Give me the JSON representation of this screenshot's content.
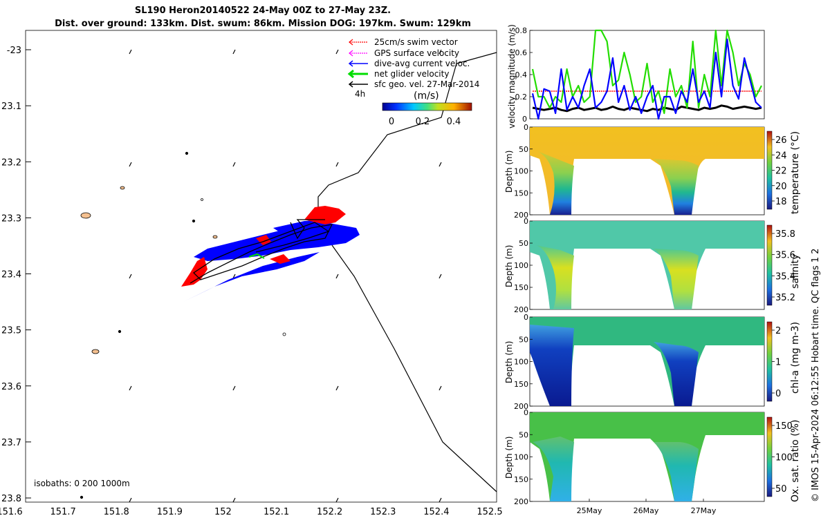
{
  "header": {
    "title_line1": "SL190 Heron20140522 24-May 00Z to 27-May 23Z.",
    "title_line2": "Dist. over ground: 133km. Dist. swum: 86km. Mission DOG: 197km. Swum: 129km"
  },
  "map": {
    "x_ticks": [
      "151.6",
      "151.7",
      "151.8",
      "151.9",
      "152",
      "152.1",
      "152.2",
      "152.3",
      "152.4",
      "152.5"
    ],
    "y_ticks": [
      "-23",
      "23.1",
      "23.2",
      "23.3",
      "23.4",
      "23.5",
      "23.6",
      "23.7",
      "23.8"
    ],
    "legend": [
      {
        "label": "25cm/s swim vector",
        "color": "#ff0000"
      },
      {
        "label": "GPS surface velocity",
        "color": "#ff00ff"
      },
      {
        "label": "dive-avg current veloc.",
        "color": "#0000ff"
      },
      {
        "label": "net glider velocity",
        "color": "#00dd00"
      },
      {
        "label": "sfc geo. vel. 27-Mar-2014",
        "color": "#000000"
      }
    ],
    "legend_4h": "4h",
    "colorbar_unit": "(m/s)",
    "colorbar_ticks": [
      "0",
      "0.2",
      "0.4"
    ],
    "isobaths": "isobaths: 0   200  1000m"
  },
  "chart_data": [
    {
      "type": "line",
      "title": "",
      "ylabel": "velocity magnitude (m/s)",
      "ylim": [
        0,
        0.8
      ],
      "y_ticks": [
        "0",
        "0.2",
        "0.4",
        "0.6",
        "0.8"
      ],
      "series": [
        {
          "name": "dive-avg current",
          "color": "#0000ff",
          "values": [
            0.23,
            0.0,
            0.27,
            0.25,
            0.05,
            0.45,
            0.08,
            0.2,
            0.1,
            0.3,
            0.45,
            0.1,
            0.15,
            0.25,
            0.55,
            0.15,
            0.3,
            0.08,
            0.2,
            0.05,
            0.2,
            0.3,
            0.0,
            0.2,
            0.2,
            0.05,
            0.25,
            0.15,
            0.45,
            0.15,
            0.25,
            0.1,
            0.6,
            0.2,
            0.72,
            0.3,
            0.18,
            0.55,
            0.35,
            0.15,
            0.1
          ]
        },
        {
          "name": "net glider",
          "color": "#22dd00",
          "values": [
            0.45,
            0.2,
            0.2,
            0.1,
            0.2,
            0.15,
            0.45,
            0.2,
            0.3,
            0.15,
            0.2,
            0.8,
            0.8,
            0.7,
            0.3,
            0.35,
            0.6,
            0.4,
            0.15,
            0.2,
            0.5,
            0.15,
            0.25,
            0.05,
            0.45,
            0.2,
            0.3,
            0.1,
            0.7,
            0.1,
            0.4,
            0.2,
            0.8,
            0.3,
            0.8,
            0.6,
            0.3,
            0.5,
            0.4,
            0.2,
            0.3
          ]
        },
        {
          "name": "swim 25cm/s",
          "color": "#ff0000",
          "values": [
            0.25,
            0.25,
            0.25,
            0.25,
            0.25,
            0.25,
            0.25,
            0.25,
            0.25,
            0.25,
            0.25,
            0.25,
            0.25,
            0.25,
            0.25,
            0.25,
            0.25,
            0.25,
            0.25,
            0.25,
            0.25,
            0.25,
            0.25,
            0.25,
            0.25,
            0.25,
            0.25,
            0.25,
            0.25,
            0.25,
            0.25,
            0.25,
            0.25,
            0.25,
            0.25,
            0.25,
            0.25,
            0.25,
            0.25,
            0.25,
            0.25
          ]
        },
        {
          "name": "sfc geo",
          "color": "#000000",
          "values": [
            0.1,
            0.09,
            0.08,
            0.09,
            0.1,
            0.08,
            0.07,
            0.09,
            0.1,
            0.08,
            0.09,
            0.1,
            0.08,
            0.09,
            0.11,
            0.09,
            0.08,
            0.1,
            0.09,
            0.08,
            0.07,
            0.09,
            0.08,
            0.1,
            0.09,
            0.08,
            0.11,
            0.1,
            0.09,
            0.08,
            0.1,
            0.09,
            0.1,
            0.12,
            0.11,
            0.09,
            0.1,
            0.11,
            0.1,
            0.09,
            0.1
          ]
        }
      ]
    },
    {
      "type": "heatmap",
      "ylabel": "Depth (m)",
      "cbar_label": "temperature (°C)",
      "cbar_ticks": [
        "26",
        "24",
        "22",
        "20",
        "18"
      ],
      "y_ticks": [
        "0",
        "50",
        "100",
        "150",
        "200"
      ],
      "ylim": [
        200,
        0
      ]
    },
    {
      "type": "heatmap",
      "ylabel": "Depth (m)",
      "cbar_label": "salinity",
      "cbar_ticks": [
        "35.8",
        "35.6",
        "35.4",
        "35.2"
      ],
      "y_ticks": [
        "0",
        "50",
        "100",
        "150",
        "200"
      ],
      "ylim": [
        200,
        0
      ]
    },
    {
      "type": "heatmap",
      "ylabel": "Depth (m)",
      "cbar_label": "chl-a (mg m-3)",
      "cbar_ticks": [
        "2",
        "1",
        "0"
      ],
      "y_ticks": [
        "0",
        "50",
        "100",
        "150",
        "200"
      ],
      "ylim": [
        200,
        0
      ]
    },
    {
      "type": "heatmap",
      "ylabel": "Depth (m)",
      "cbar_label": "Ox. sat. ratio (%)",
      "cbar_ticks": [
        "150",
        "100",
        "50"
      ],
      "y_ticks": [
        "0",
        "50",
        "100",
        "150",
        "200"
      ],
      "ylim": [
        200,
        0
      ],
      "x_ticks": [
        "25May",
        "26May",
        "27May"
      ]
    }
  ],
  "footer": {
    "credit": "© IMOS 15-Apr-2024 06:12:55 Hobart time. QC flags 1  2"
  }
}
